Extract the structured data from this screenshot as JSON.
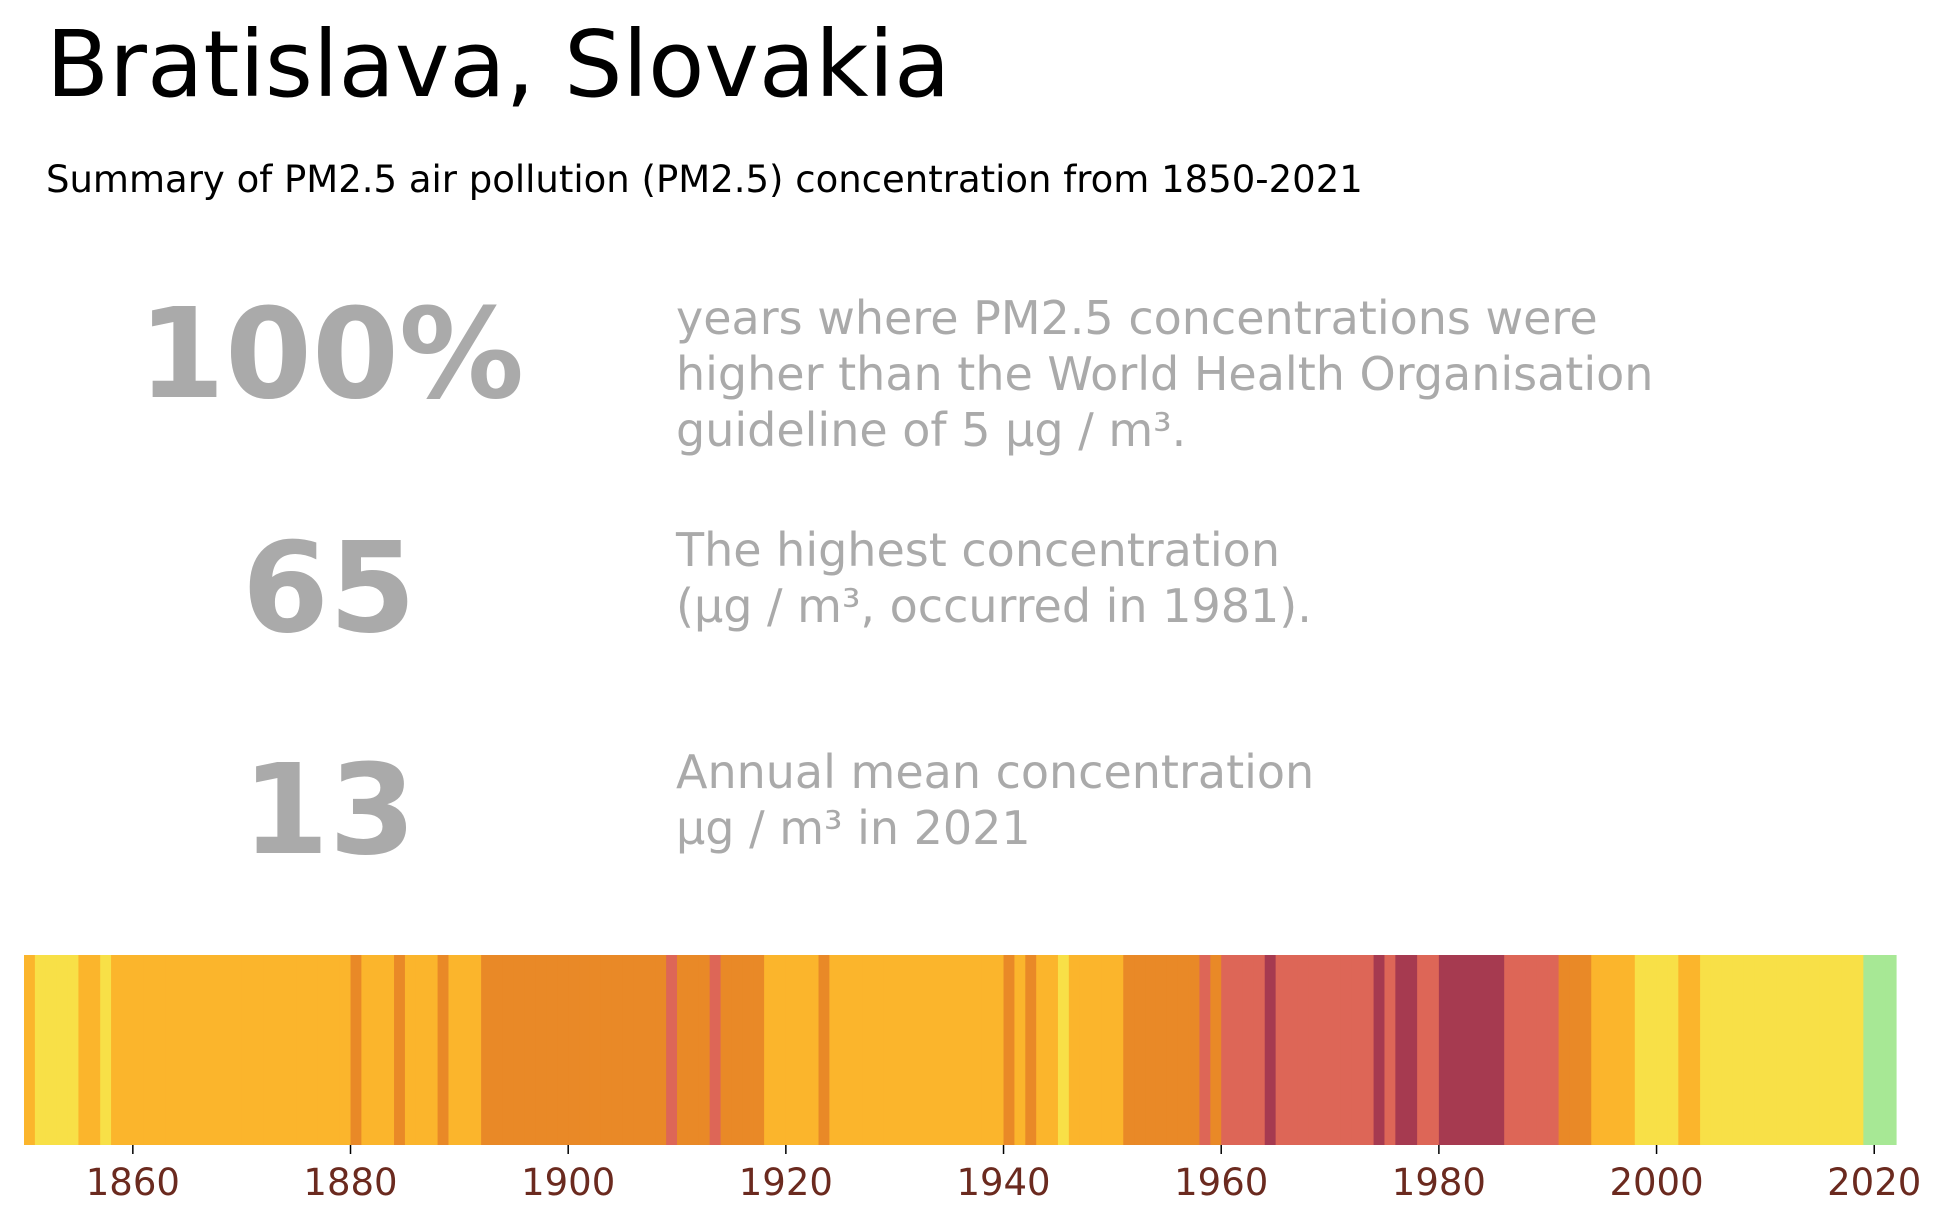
{
  "header": {
    "title": "Bratislava, Slovakia",
    "subtitle": "Summary of PM2.5 air pollution (PM2.5) concentration from 1850-2021"
  },
  "stats": [
    {
      "value": "100%",
      "lines": [
        "years where PM2.5 concentrations were",
        "higher than the World Health Organisation",
        "guideline of 5 µg / m³."
      ]
    },
    {
      "value": "65",
      "lines": [
        "The highest concentration",
        "(µg / m³, occurred in 1981)."
      ]
    },
    {
      "value": "13",
      "lines": [
        "Annual mean concentration",
        "µg / m³ in 2021"
      ]
    }
  ],
  "colors": {
    "level_1": "#a7e895",
    "level_2": "#f8e047",
    "level_3": "#fbb52c",
    "level_4": "#e98927",
    "level_5": "#dd6657",
    "level_6": "#a63a50",
    "tick_label": "#6b2a1f",
    "stat_text": "#aaaaaa"
  },
  "chart_data": {
    "type": "heatmap",
    "title": "",
    "xlabel": "",
    "ylabel": "",
    "x_range": [
      1850,
      2021
    ],
    "x_ticks": [
      "1860",
      "1880",
      "1900",
      "1920",
      "1940",
      "1960",
      "1980",
      "2000",
      "2020"
    ],
    "legend": "none",
    "grid": false,
    "value_encoding": "color level 1 (lowest concentration, green) to 6 (highest concentration, dark red)",
    "years": [
      1850,
      1851,
      1852,
      1853,
      1854,
      1855,
      1856,
      1857,
      1858,
      1859,
      1860,
      1861,
      1862,
      1863,
      1864,
      1865,
      1866,
      1867,
      1868,
      1869,
      1870,
      1871,
      1872,
      1873,
      1874,
      1875,
      1876,
      1877,
      1878,
      1879,
      1880,
      1881,
      1882,
      1883,
      1884,
      1885,
      1886,
      1887,
      1888,
      1889,
      1890,
      1891,
      1892,
      1893,
      1894,
      1895,
      1896,
      1897,
      1898,
      1899,
      1900,
      1901,
      1902,
      1903,
      1904,
      1905,
      1906,
      1907,
      1908,
      1909,
      1910,
      1911,
      1912,
      1913,
      1914,
      1915,
      1916,
      1917,
      1918,
      1919,
      1920,
      1921,
      1922,
      1923,
      1924,
      1925,
      1926,
      1927,
      1928,
      1929,
      1930,
      1931,
      1932,
      1933,
      1934,
      1935,
      1936,
      1937,
      1938,
      1939,
      1940,
      1941,
      1942,
      1943,
      1944,
      1945,
      1946,
      1947,
      1948,
      1949,
      1950,
      1951,
      1952,
      1953,
      1954,
      1955,
      1956,
      1957,
      1958,
      1959,
      1960,
      1961,
      1962,
      1963,
      1964,
      1965,
      1966,
      1967,
      1968,
      1969,
      1970,
      1971,
      1972,
      1973,
      1974,
      1975,
      1976,
      1977,
      1978,
      1979,
      1980,
      1981,
      1982,
      1983,
      1984,
      1985,
      1986,
      1987,
      1988,
      1989,
      1990,
      1991,
      1992,
      1993,
      1994,
      1995,
      1996,
      1997,
      1998,
      1999,
      2000,
      2001,
      2002,
      2003,
      2004,
      2005,
      2006,
      2007,
      2008,
      2009,
      2010,
      2011,
      2012,
      2013,
      2014,
      2015,
      2016,
      2017,
      2018,
      2019,
      2020,
      2021
    ],
    "levels": [
      3,
      2,
      2,
      2,
      2,
      3,
      3,
      2,
      3,
      3,
      3,
      3,
      3,
      3,
      3,
      3,
      3,
      3,
      3,
      3,
      3,
      3,
      3,
      3,
      3,
      3,
      3,
      3,
      3,
      3,
      4,
      3,
      3,
      3,
      4,
      3,
      3,
      3,
      4,
      3,
      3,
      3,
      4,
      4,
      4,
      4,
      4,
      4,
      4,
      4,
      4,
      4,
      4,
      4,
      4,
      4,
      4,
      4,
      4,
      5,
      4,
      4,
      4,
      5,
      4,
      4,
      4,
      4,
      3,
      3,
      3,
      3,
      3,
      4,
      3,
      3,
      3,
      3,
      3,
      3,
      3,
      3,
      3,
      3,
      3,
      3,
      3,
      3,
      3,
      3,
      4,
      3,
      4,
      3,
      3,
      2,
      3,
      3,
      3,
      3,
      3,
      4,
      4,
      4,
      4,
      4,
      4,
      4,
      5,
      4,
      5,
      5,
      5,
      5,
      6,
      5,
      5,
      5,
      5,
      5,
      5,
      5,
      5,
      5,
      6,
      5,
      6,
      6,
      5,
      5,
      6,
      6,
      6,
      6,
      6,
      6,
      5,
      5,
      5,
      5,
      5,
      4,
      4,
      4,
      3,
      3,
      3,
      3,
      2,
      2,
      2,
      2,
      3,
      3,
      2,
      2,
      2,
      2,
      2,
      2,
      2,
      2,
      2,
      2,
      2,
      2,
      2,
      2,
      2,
      1,
      1,
      1
    ]
  }
}
